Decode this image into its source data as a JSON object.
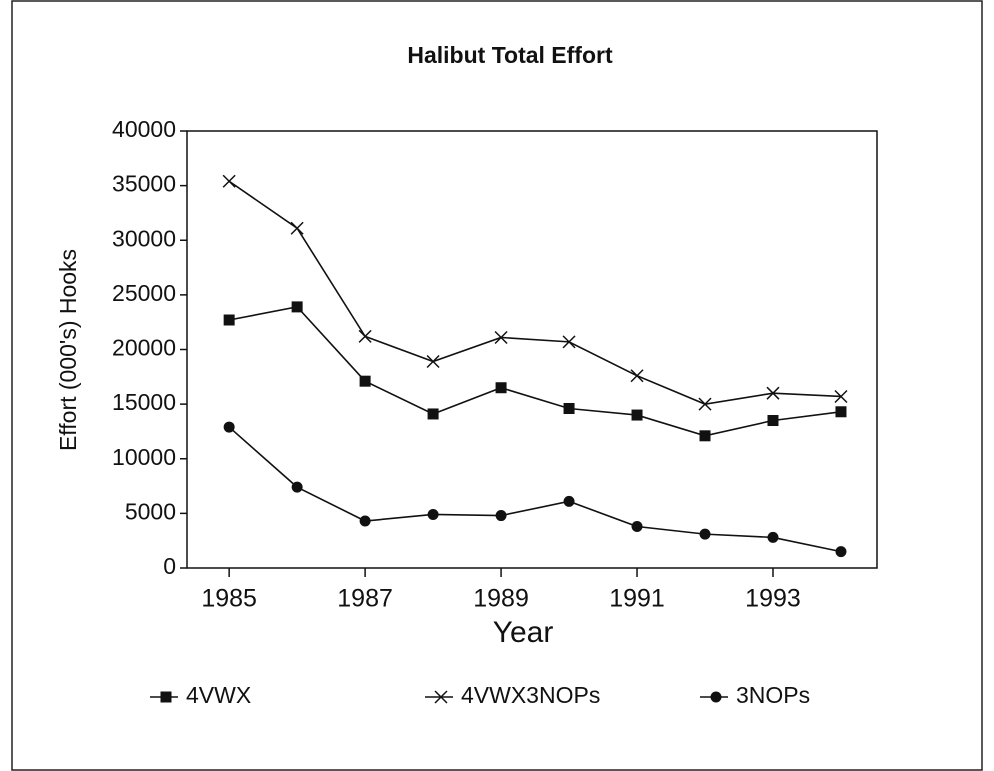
{
  "chart_data": {
    "type": "line",
    "title": "Halibut Total Effort",
    "x_label": "Year",
    "y_label": "Effort (000's) Hooks",
    "x": [
      1985,
      1986,
      1987,
      1988,
      1989,
      1990,
      1991,
      1992,
      1993,
      1994
    ],
    "series": [
      {
        "name": "4VWX",
        "color": "#111111",
        "marker": "square",
        "values": [
          22700,
          23900,
          17100,
          14100,
          16500,
          14600,
          14000,
          12100,
          13500,
          14300
        ]
      },
      {
        "name": "4VWX3NOPs",
        "color": "#111111",
        "marker": "x",
        "values": [
          35400,
          31100,
          21200,
          18900,
          21100,
          20700,
          17600,
          15000,
          16000,
          15700
        ]
      },
      {
        "name": "3NOPs",
        "color": "#111111",
        "marker": "circle",
        "values": [
          12900,
          7400,
          4300,
          4900,
          4800,
          6100,
          3800,
          3100,
          2800,
          1500
        ]
      }
    ],
    "xlim": [
      1984.38,
      1994.53
    ],
    "xticks": [
      1985,
      1987,
      1989,
      1991,
      1993
    ],
    "ylim": [
      0,
      40000
    ],
    "yticks": [
      0,
      5000,
      10000,
      15000,
      20000,
      25000,
      30000,
      35000,
      40000
    ],
    "grid": false,
    "legend": "bottom"
  }
}
